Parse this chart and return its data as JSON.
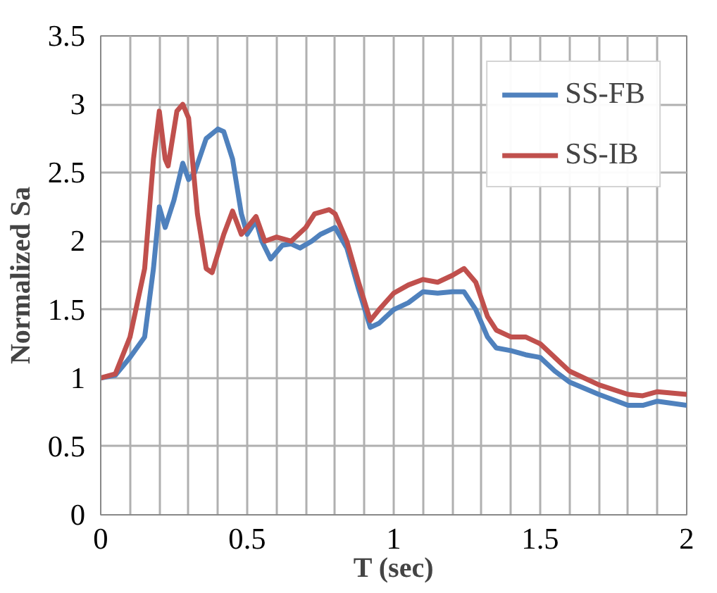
{
  "chart_data": {
    "type": "line",
    "xlabel": "T (sec)",
    "ylabel": "Normalized Sa",
    "xlim": [
      0,
      2
    ],
    "ylim": [
      0,
      3.5
    ],
    "xticks": [
      0,
      {
        "value": 0.1,
        "label": null
      },
      {
        "value": 0.2,
        "label": null
      },
      {
        "value": 0.3,
        "label": null
      },
      {
        "value": 0.4,
        "label": null
      },
      0.5,
      {
        "value": 0.6,
        "label": null
      },
      {
        "value": 0.7,
        "label": null
      },
      {
        "value": 0.8,
        "label": null
      },
      {
        "value": 0.9,
        "label": null
      },
      1,
      {
        "value": 1.1,
        "label": null
      },
      {
        "value": 1.2,
        "label": null
      },
      {
        "value": 1.3,
        "label": null
      },
      {
        "value": 1.4,
        "label": null
      },
      1.5,
      {
        "value": 1.6,
        "label": null
      },
      {
        "value": 1.7,
        "label": null
      },
      {
        "value": 1.8,
        "label": null
      },
      {
        "value": 1.9,
        "label": null
      },
      2
    ],
    "yticks": [
      0,
      0.5,
      1,
      1.5,
      2,
      2.5,
      3,
      3.5
    ],
    "grid": true,
    "legend": "top right",
    "marker": "none",
    "line_style": "solid",
    "series": [
      {
        "name": "SS-FB",
        "color": "#4f81bd",
        "x": [
          0,
          0.05,
          0.1,
          0.15,
          0.18,
          0.2,
          0.22,
          0.25,
          0.28,
          0.3,
          0.32,
          0.36,
          0.4,
          0.42,
          0.45,
          0.48,
          0.5,
          0.53,
          0.55,
          0.58,
          0.62,
          0.65,
          0.68,
          0.72,
          0.75,
          0.78,
          0.8,
          0.84,
          0.88,
          0.92,
          0.95,
          1.0,
          1.05,
          1.1,
          1.15,
          1.2,
          1.24,
          1.28,
          1.32,
          1.35,
          1.4,
          1.45,
          1.5,
          1.55,
          1.6,
          1.7,
          1.8,
          1.85,
          1.9,
          2.0
        ],
        "values": [
          1,
          1.02,
          1.15,
          1.3,
          1.8,
          2.25,
          2.1,
          2.3,
          2.57,
          2.45,
          2.5,
          2.75,
          2.82,
          2.8,
          2.6,
          2.2,
          2.05,
          2.15,
          2.0,
          1.87,
          1.97,
          1.98,
          1.95,
          2.0,
          2.05,
          2.08,
          2.1,
          1.95,
          1.65,
          1.37,
          1.4,
          1.5,
          1.55,
          1.63,
          1.62,
          1.63,
          1.63,
          1.5,
          1.3,
          1.22,
          1.2,
          1.17,
          1.15,
          1.05,
          0.97,
          0.88,
          0.8,
          0.8,
          0.83,
          0.8
        ]
      },
      {
        "name": "SS-IB",
        "color": "#c0504d",
        "x": [
          0,
          0.05,
          0.1,
          0.15,
          0.18,
          0.2,
          0.22,
          0.23,
          0.26,
          0.28,
          0.3,
          0.33,
          0.36,
          0.38,
          0.42,
          0.45,
          0.48,
          0.5,
          0.53,
          0.56,
          0.6,
          0.65,
          0.7,
          0.73,
          0.78,
          0.8,
          0.84,
          0.88,
          0.92,
          0.95,
          1.0,
          1.05,
          1.1,
          1.15,
          1.2,
          1.24,
          1.28,
          1.32,
          1.35,
          1.4,
          1.45,
          1.5,
          1.55,
          1.6,
          1.7,
          1.8,
          1.85,
          1.9,
          2.0
        ],
        "values": [
          1,
          1.03,
          1.3,
          1.8,
          2.6,
          2.95,
          2.6,
          2.55,
          2.95,
          3.0,
          2.9,
          2.2,
          1.8,
          1.77,
          2.05,
          2.22,
          2.05,
          2.1,
          2.18,
          2.0,
          2.03,
          2.0,
          2.1,
          2.2,
          2.23,
          2.2,
          2.0,
          1.7,
          1.42,
          1.5,
          1.62,
          1.68,
          1.72,
          1.7,
          1.75,
          1.8,
          1.7,
          1.45,
          1.35,
          1.3,
          1.3,
          1.25,
          1.15,
          1.05,
          0.95,
          0.88,
          0.87,
          0.9,
          0.88
        ]
      }
    ]
  }
}
